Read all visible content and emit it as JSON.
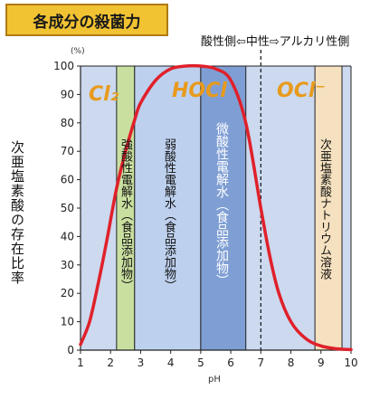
{
  "title": "各成分の殺菌力",
  "header_note": "酸性側⇦中性⇨アルカリ性側",
  "chart_data": {
    "type": "line",
    "title": "各成分の殺菌力",
    "xlabel": "pH",
    "ylabel": "次亜塩素酸の存在比率",
    "yunit": "(%)",
    "xlim": [
      1,
      10
    ],
    "ylim": [
      0,
      100
    ],
    "xticks": [
      1,
      2,
      3,
      4,
      5,
      6,
      7,
      8,
      9,
      10
    ],
    "yticks": [
      0,
      10,
      20,
      30,
      40,
      50,
      60,
      70,
      80,
      90,
      100
    ],
    "grid": false,
    "neutral_line_x": 7,
    "series": [
      {
        "name": "次亜塩素酸",
        "color": "#e0202a",
        "x": [
          1.0,
          1.3,
          1.6,
          1.9,
          2.2,
          2.5,
          2.8,
          3.0,
          3.5,
          4.0,
          4.5,
          5.0,
          5.5,
          6.0,
          6.5,
          7.0,
          7.3,
          7.6,
          8.0,
          8.5,
          9.0,
          9.5,
          10.0
        ],
        "y": [
          2,
          10,
          24,
          40,
          57,
          70,
          81,
          87,
          95,
          99,
          100,
          100,
          99,
          95,
          80,
          50,
          33,
          20,
          10,
          4,
          1.5,
          0.5,
          0.2
        ]
      }
    ],
    "species_labels": [
      "Cl₂",
      "HOCl",
      "OCl⁻"
    ],
    "zones": [
      {
        "label": "強酸性電解水（食品添加物）",
        "x_range": [
          2.2,
          2.8
        ],
        "color": "#c9dfa0"
      },
      {
        "label": "弱酸性電解水（食品添加物）",
        "x_range": [
          2.8,
          5.0
        ],
        "color": "#bdd0ee"
      },
      {
        "label": "微酸性電解水（食品添加物）",
        "x_range": [
          5.0,
          6.5
        ],
        "color": "#7f9fd4"
      },
      {
        "label": "次亜塩素酸ナトリウム溶液",
        "x_range": [
          8.8,
          9.7
        ],
        "color": "#f5e1bf"
      }
    ],
    "background_color": "#ccd9ef"
  }
}
